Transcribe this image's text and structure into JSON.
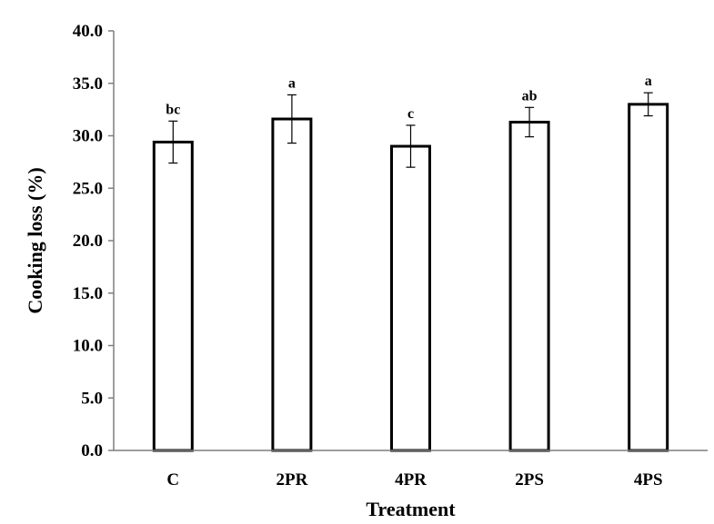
{
  "chart_data": {
    "type": "bar",
    "title": "",
    "xlabel": "Treatment",
    "ylabel": "Cooking loss (%)",
    "ylim": [
      0,
      40
    ],
    "yticks": [
      "0.0",
      "5.0",
      "10.0",
      "15.0",
      "20.0",
      "25.0",
      "30.0",
      "35.0",
      "40.0"
    ],
    "categories": [
      "C",
      "2PR",
      "4PR",
      "2PS",
      "4PS"
    ],
    "values": [
      29.4,
      31.6,
      29.0,
      31.3,
      33.0
    ],
    "errors": [
      2.0,
      2.3,
      2.0,
      1.4,
      1.1
    ],
    "significance_letters": [
      "bc",
      "a",
      "c",
      "ab",
      "a"
    ],
    "grid": false,
    "legend": "none",
    "bar_fill": "#ffffff",
    "bar_stroke": "#000000"
  }
}
